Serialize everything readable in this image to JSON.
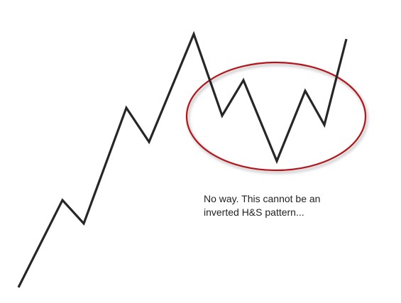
{
  "caption": "No way.  This cannot be an\ninverted H&S pattern...",
  "colors": {
    "background": "#ffffff",
    "price_line": "#262626",
    "highlight_ellipse": "#b0171f",
    "caption_text": "#222222"
  }
}
